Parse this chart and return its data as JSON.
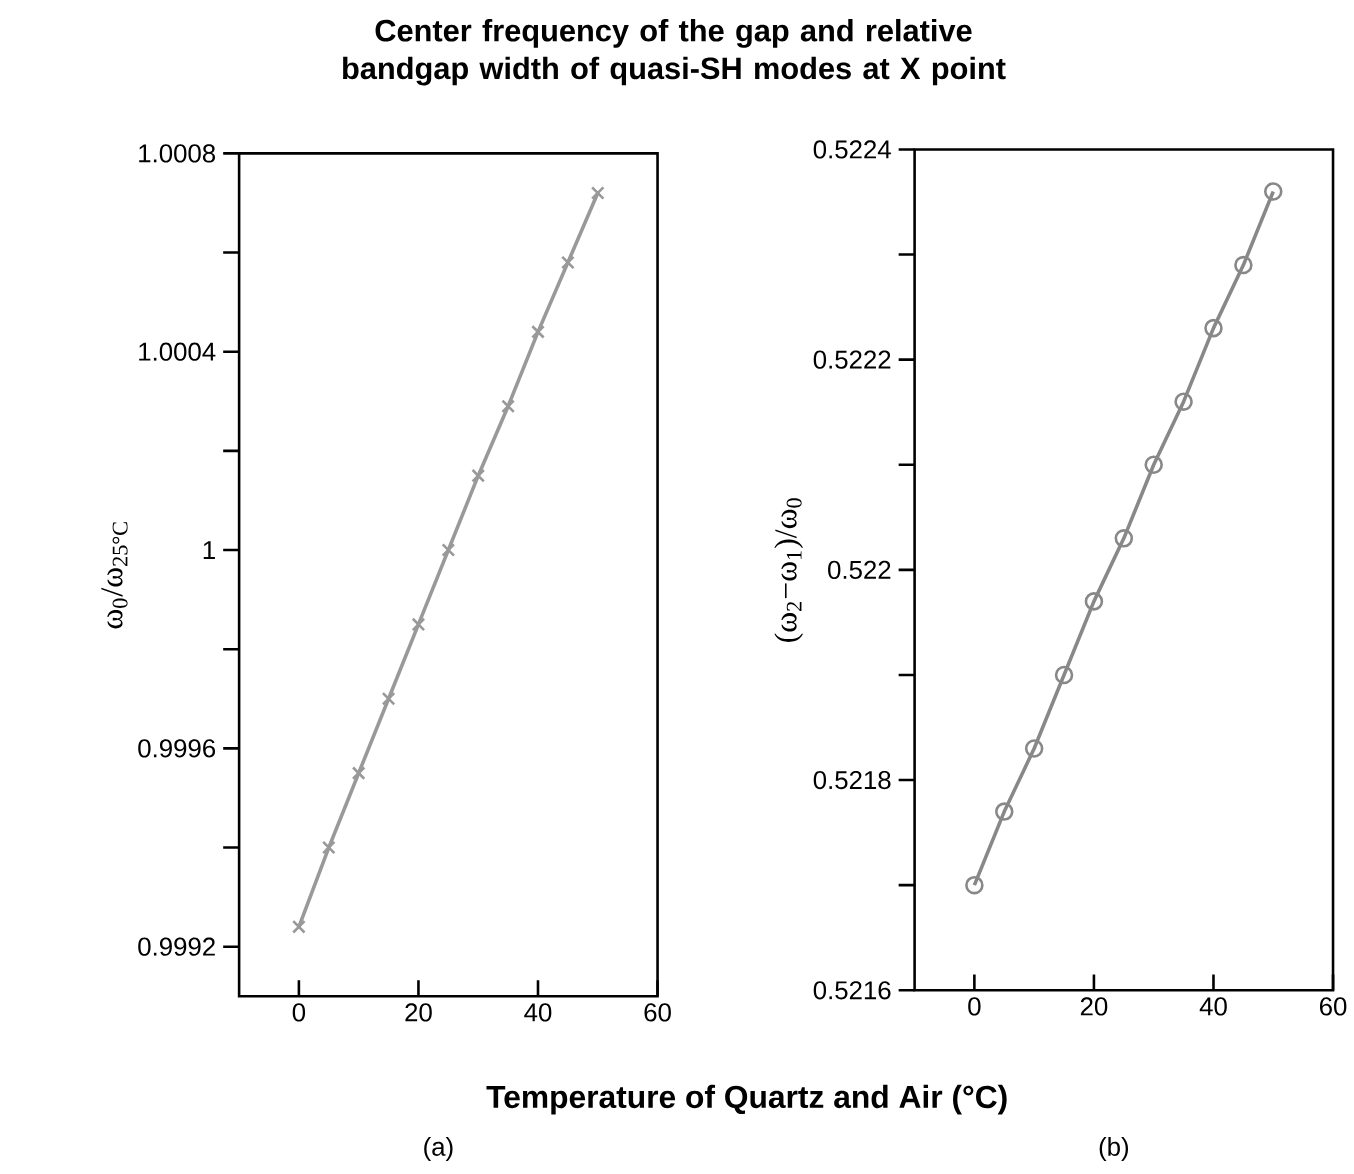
{
  "chart_data": [
    {
      "type": "line",
      "title": "Center frequency of the gap and relative bandgap width of quasi-SH modes at X point",
      "xlabel": "Temperature of Quartz and Air (°C)",
      "ylabel": "ω$_{0}$/ω$_{25°C}$",
      "annotations": [
        "(a)"
      ],
      "x": [
        0,
        5,
        10,
        15,
        20,
        25,
        30,
        35,
        40,
        45,
        50
      ],
      "values": [
        0.99924,
        0.9994,
        0.99955,
        0.9997,
        0.99985,
        1.0,
        1.00015,
        1.00029,
        1.00044,
        1.00058,
        1.00072
      ],
      "color": "#999999",
      "marker": "cross",
      "xlim": [
        -10,
        60
      ],
      "xticks": [
        0,
        20,
        40,
        60
      ],
      "ylim": [
        0.9991,
        1.0008
      ],
      "yticks": [
        0.9992,
        {
          "value": 0.9994,
          "label": null
        },
        0.9996,
        {
          "value": 0.9998,
          "label": null
        },
        1,
        {
          "value": 1.0002,
          "label": null
        },
        1.0004,
        {
          "value": 1.0006,
          "label": null
        },
        1.0008
      ]
    },
    {
      "type": "line",
      "ylabel": "(ω$_{2}$−ω$_{1}$)/ω$_{0}$",
      "annotations": [
        "(b)"
      ],
      "x": [
        0,
        5,
        10,
        15,
        20,
        25,
        30,
        35,
        40,
        45,
        50
      ],
      "values": [
        0.5217,
        0.52177,
        0.52183,
        0.5219,
        0.52197,
        0.52203,
        0.5221,
        0.52216,
        0.52223,
        0.52229,
        0.52236
      ],
      "color": "#888888",
      "marker": "circle",
      "xlim": [
        -10,
        60
      ],
      "xticks": [
        0,
        20,
        40,
        60
      ],
      "ylim": [
        0.5216,
        0.5224
      ],
      "yticks": [
        0.5216,
        {
          "value": 0.5217,
          "label": null
        },
        0.5218,
        {
          "value": 0.5219,
          "label": null
        },
        0.522,
        {
          "value": 0.5221,
          "label": null
        },
        0.5222,
        {
          "value": 0.5223,
          "label": null
        },
        0.5224
      ]
    }
  ]
}
